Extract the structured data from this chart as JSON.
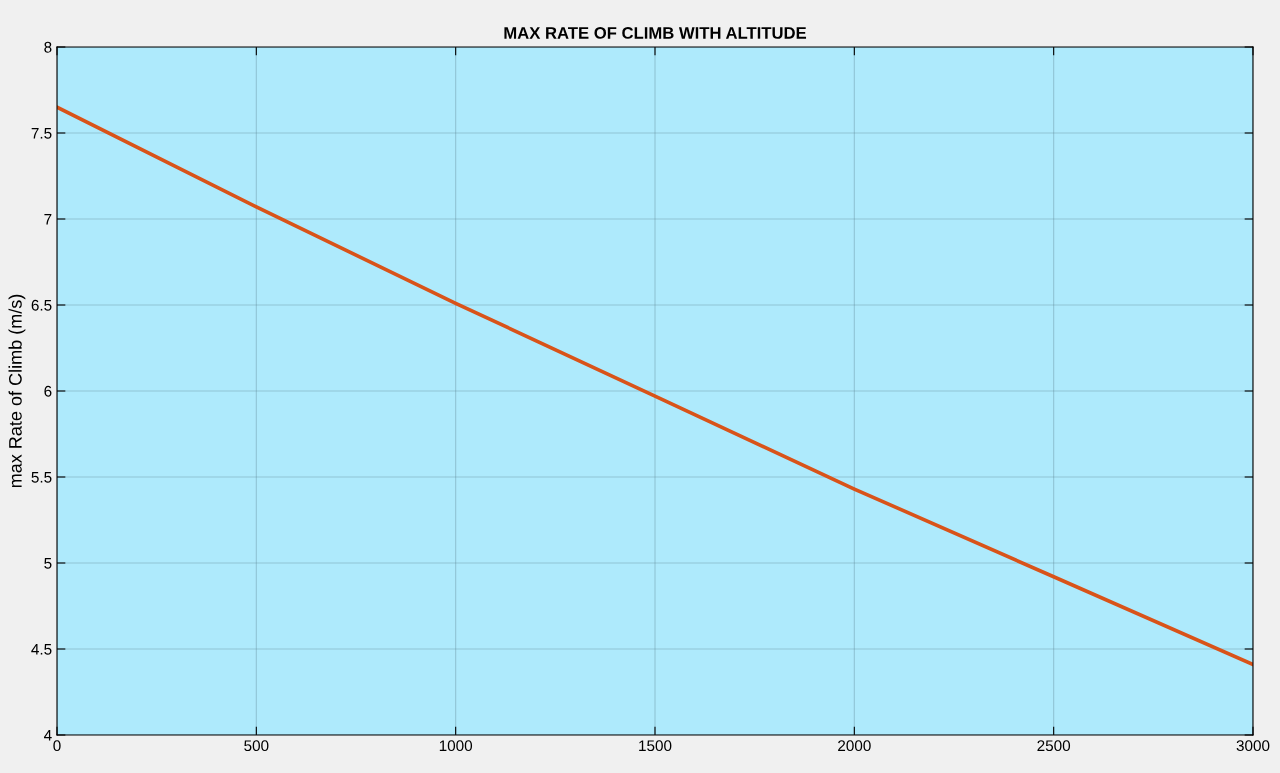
{
  "chart_data": {
    "type": "line",
    "title": "MAX RATE OF CLIMB WITH ALTITUDE",
    "ylabel": "max Rate of Climb (m/s)",
    "x": [
      0,
      500,
      1000,
      1500,
      2000,
      2500,
      3000
    ],
    "series": [
      {
        "color": "#d95319",
        "values": [
          7.65,
          7.07,
          6.51,
          5.97,
          5.43,
          4.92,
          4.41
        ]
      }
    ],
    "xlim": [
      0,
      3000
    ],
    "xticks": [
      0,
      500,
      1000,
      1500,
      2000,
      2500,
      3000
    ],
    "ylim": [
      4,
      8
    ],
    "yticks": [
      4,
      4.5,
      5,
      5.5,
      6,
      6.5,
      7,
      7.5,
      8
    ],
    "grid": true,
    "marker": "none",
    "line_style": "solid"
  }
}
